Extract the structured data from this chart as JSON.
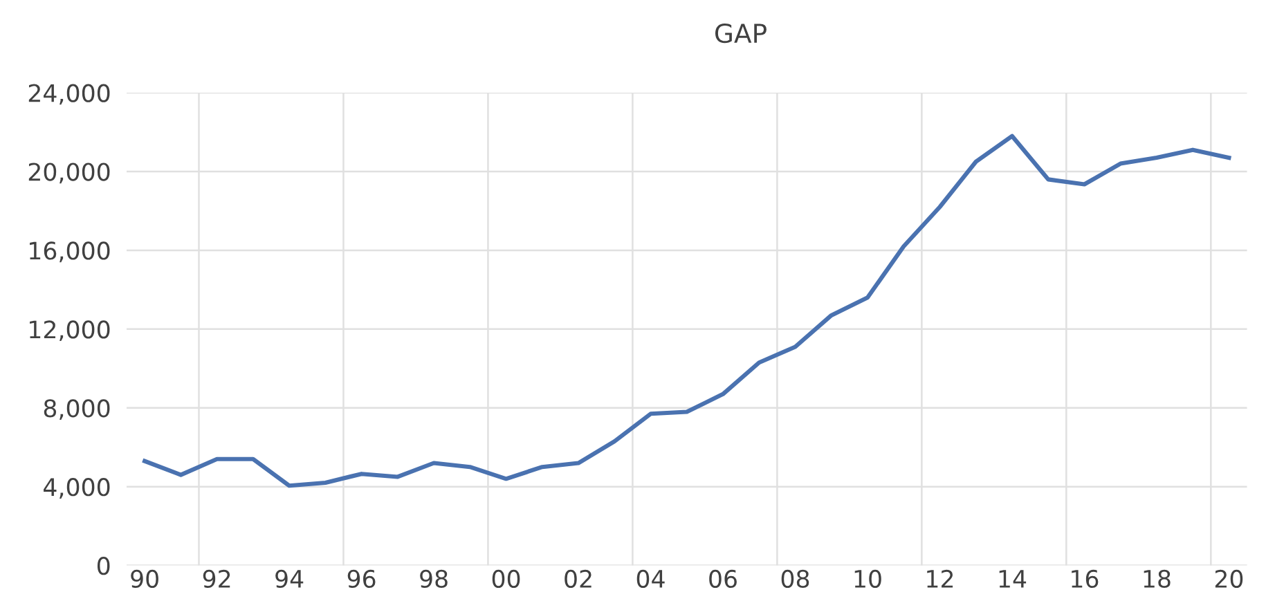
{
  "chart_data": {
    "type": "line",
    "title": "GAP",
    "categories": [
      "90",
      null,
      "92",
      null,
      "94",
      null,
      "96",
      null,
      "98",
      null,
      "00",
      null,
      "02",
      null,
      "04",
      null,
      "06",
      null,
      "08",
      null,
      "10",
      null,
      "12",
      null,
      "14",
      null,
      "16",
      null,
      "18",
      null,
      "20"
    ],
    "series": [
      {
        "color": "#4a72b0",
        "values": [
          5300,
          4600,
          5400,
          5400,
          4050,
          4200,
          4650,
          4500,
          5200,
          5000,
          4400,
          5000,
          5200,
          6300,
          7700,
          7800,
          8700,
          10300,
          11100,
          12700,
          13600,
          16200,
          18200,
          20500,
          21800,
          19600,
          19350,
          20400,
          20700,
          21100,
          20700
        ]
      }
    ],
    "ylim": [
      0,
      24000
    ],
    "yticks": [
      {
        "value": 0,
        "label": "0"
      },
      {
        "value": 4000,
        "label": "4,000"
      },
      {
        "value": 8000,
        "label": "8,000"
      },
      {
        "value": 12000,
        "label": "12,000"
      },
      {
        "value": 16000,
        "label": "16,000"
      },
      {
        "value": 20000,
        "label": "20,000"
      },
      {
        "value": 24000,
        "label": "24,000"
      }
    ],
    "grid": true,
    "marker": "none",
    "line_style": "solid"
  }
}
